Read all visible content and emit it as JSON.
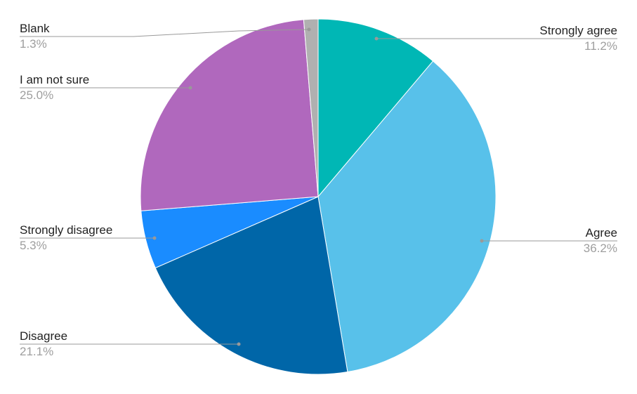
{
  "chart_data": {
    "type": "pie",
    "title": "",
    "start_angle_deg": 0,
    "direction": "clockwise",
    "slices": [
      {
        "label": "Strongly agree",
        "percent_label": "11.2%",
        "value": 11.2,
        "color": "#00b7b5",
        "side": "right"
      },
      {
        "label": "Agree",
        "percent_label": "36.2%",
        "value": 36.2,
        "color": "#58c1ea",
        "side": "right"
      },
      {
        "label": "Disagree",
        "percent_label": "21.1%",
        "value": 21.1,
        "color": "#0066a8",
        "side": "left"
      },
      {
        "label": "Strongly disagree",
        "percent_label": "5.3%",
        "value": 5.3,
        "color": "#1a8cff",
        "side": "left"
      },
      {
        "label": "I am not sure",
        "percent_label": "25.0%",
        "value": 25.0,
        "color": "#b068bd",
        "side": "left"
      },
      {
        "label": "Blank",
        "percent_label": "1.3%",
        "value": 1.3,
        "color": "#b0b0b0",
        "side": "left"
      }
    ],
    "leader_line_color": "#999999"
  }
}
